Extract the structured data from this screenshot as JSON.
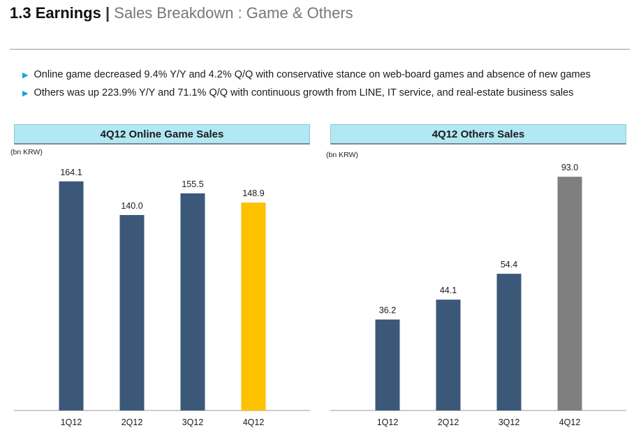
{
  "header": {
    "number": "1.3",
    "main": "Earnings",
    "separator": "|",
    "subtitle": "Sales Breakdown : Game & Others"
  },
  "bullets": [
    "Online game decreased 9.4% Y/Y and 4.2% Q/Q with conservative stance on web-board games  and absence of new games",
    "Others was up 223.9% Y/Y and 71.1% Q/Q with continuous growth from LINE, IT service, and real-estate business sales"
  ],
  "icons": {
    "bullet": "triangle-right-icon"
  },
  "colors": {
    "bar_default": "#3b5878",
    "bar_highlight_game": "#fcc200",
    "bar_highlight_others": "#7f7f7f",
    "title_box": "#b2e8f4",
    "bullet_marker": "#1aa3d9"
  },
  "chart_data": [
    {
      "type": "bar",
      "title": "4Q12 Online Game Sales",
      "unit": "(bn KRW)",
      "categories": [
        "1Q12",
        "2Q12",
        "3Q12",
        "4Q12"
      ],
      "values": [
        164.1,
        140.0,
        155.5,
        148.9
      ],
      "labels": [
        "164.1",
        "140.0",
        "155.5",
        "148.9"
      ],
      "highlight_index": 3,
      "ylim": [
        0,
        190
      ],
      "grid": false,
      "legend": "none"
    },
    {
      "type": "bar",
      "title": "4Q12 Others Sales",
      "unit": "(bn KRW)",
      "categories": [
        "1Q12",
        "2Q12",
        "3Q12",
        "4Q12"
      ],
      "values": [
        36.2,
        44.1,
        54.4,
        93.0
      ],
      "labels": [
        "36.2",
        "44.1",
        "54.4",
        "93.0"
      ],
      "highlight_index": 3,
      "ylim": [
        0,
        100
      ],
      "grid": false,
      "legend": "none"
    }
  ]
}
